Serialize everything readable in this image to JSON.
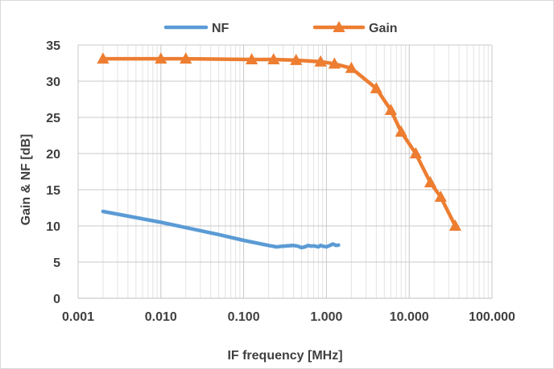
{
  "chart_data": {
    "type": "line",
    "xscale": "log",
    "xlim": [
      0.001,
      100
    ],
    "ylim": [
      0,
      35
    ],
    "xlabel": "IF frequency [MHz]",
    "ylabel": "Gain & NF [dB]",
    "grid": {
      "major_y": true,
      "major_x": true,
      "minor_x": true
    },
    "legend_position": "top",
    "x_tick_labels": [
      "0.001",
      "0.010",
      "0.100",
      "1.000",
      "10.000",
      "100.000"
    ],
    "x_tick_values": [
      0.001,
      0.01,
      0.1,
      1,
      10,
      100
    ],
    "y_tick_labels": [
      "0",
      "5",
      "10",
      "15",
      "20",
      "25",
      "30",
      "35"
    ],
    "y_tick_values": [
      0,
      5,
      10,
      15,
      20,
      25,
      30,
      35
    ],
    "series": [
      {
        "name": "NF",
        "color": "#5b9bd5",
        "marker": "none",
        "x": [
          0.002,
          0.01,
          0.05,
          0.1,
          0.2,
          0.25,
          0.3,
          0.4,
          0.45,
          0.5,
          0.55,
          0.6,
          0.65,
          0.7,
          0.8,
          0.85,
          0.9,
          1.0,
          1.1,
          1.2,
          1.3,
          1.4
        ],
        "y": [
          12.0,
          10.5,
          8.8,
          8.0,
          7.3,
          7.1,
          7.2,
          7.3,
          7.2,
          7.0,
          7.1,
          7.3,
          7.2,
          7.25,
          7.1,
          7.3,
          7.2,
          7.1,
          7.3,
          7.5,
          7.3,
          7.35
        ]
      },
      {
        "name": "Gain",
        "color": "#ed7d31",
        "marker": "triangle",
        "x": [
          0.002,
          0.01,
          0.02,
          0.125,
          0.23,
          0.43,
          0.85,
          1.25,
          2.0,
          4.0,
          6.0,
          8.0,
          12.0,
          18.0,
          24.0,
          36.0
        ],
        "y": [
          33.1,
          33.1,
          33.1,
          33.0,
          33.0,
          32.9,
          32.7,
          32.4,
          31.8,
          29.0,
          26.0,
          23.0,
          20.0,
          16.0,
          14.0,
          10.0
        ]
      }
    ]
  }
}
